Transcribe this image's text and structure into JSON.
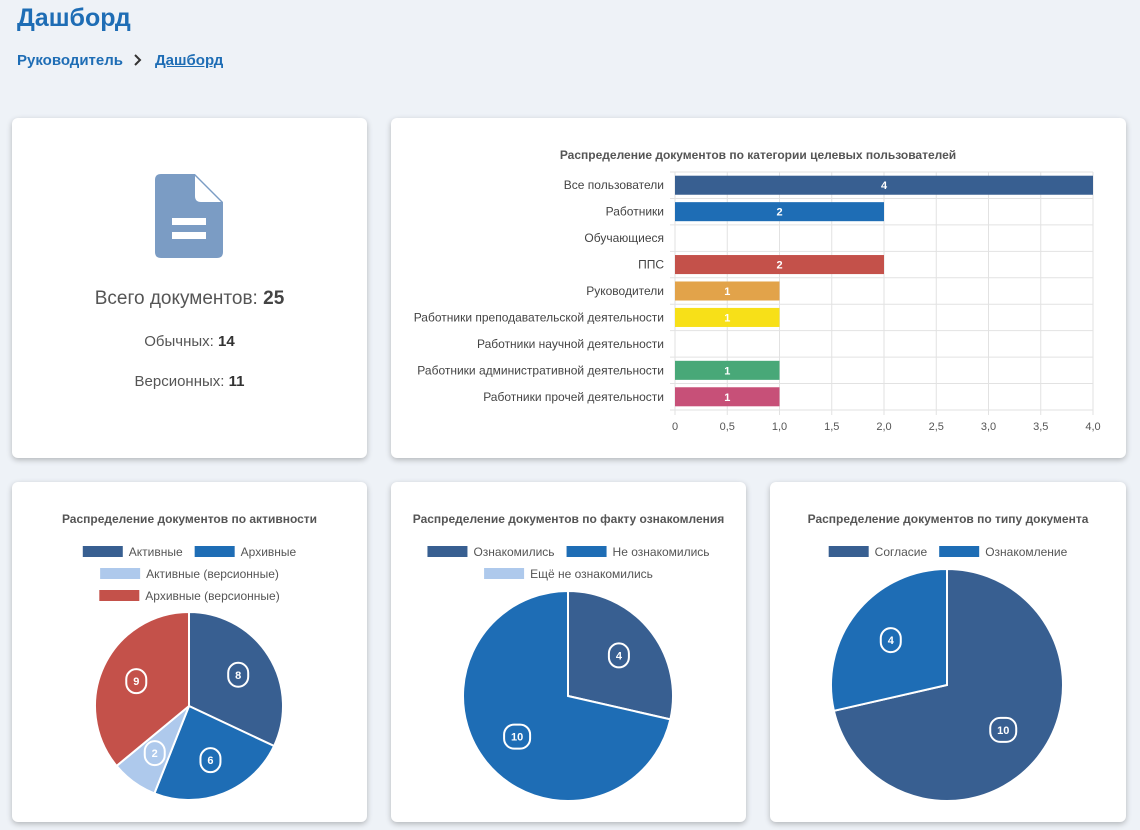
{
  "page": {
    "title": "Дашборд"
  },
  "breadcrumb": {
    "root": "Руководитель",
    "current": "Дашборд"
  },
  "summary": {
    "total_label": "Всего документов:",
    "total_value": "25",
    "regular_label": "Обычных:",
    "regular_value": "14",
    "versioned_label": "Версионных:",
    "versioned_value": "11",
    "icon": "document-icon"
  },
  "chart_data": [
    {
      "type": "bar",
      "orientation": "horizontal",
      "title": "Распределение документов по категории целевых пользователей",
      "categories": [
        "Все пользователи",
        "Работники",
        "Обучающиеся",
        "ППС",
        "Руководители",
        "Работники преподавательской деятельности",
        "Работники научной деятельности",
        "Работники административной деятельности",
        "Работники прочей деятельности"
      ],
      "values": [
        4,
        2,
        0,
        2,
        1,
        1,
        0,
        1,
        1
      ],
      "colors": [
        "#385f91",
        "#1e6db5",
        "#aec9ec",
        "#c4514a",
        "#e2a34a",
        "#f7e018",
        "#8c6ab8",
        "#48a878",
        "#c75078"
      ],
      "xlim": [
        0,
        4
      ],
      "xticks": [
        "0",
        "0,5",
        "1,0",
        "1,5",
        "2,0",
        "2,5",
        "3,0",
        "3,5",
        "4,0"
      ],
      "grid": true
    },
    {
      "type": "pie",
      "title": "Распределение документов по активности",
      "legend": [
        "Активные",
        "Архивные",
        "Активные (версионные)",
        "Архивные (версионные)"
      ],
      "values": [
        8,
        6,
        2,
        9
      ],
      "colors": [
        "#385f91",
        "#1e6db5",
        "#aec9ec",
        "#c4514a"
      ],
      "legend_position": "top"
    },
    {
      "type": "pie",
      "title": "Распределение документов по факту ознакомления",
      "legend": [
        "Ознакомились",
        "Не ознакомились",
        "Ещё не ознакомились"
      ],
      "values": [
        4,
        10,
        0
      ],
      "colors": [
        "#385f91",
        "#1e6db5",
        "#aec9ec"
      ],
      "legend_position": "top"
    },
    {
      "type": "pie",
      "title": "Распределение документов по типу документа",
      "legend": [
        "Согласие",
        "Ознакомление"
      ],
      "values": [
        10,
        4
      ],
      "colors": [
        "#385f91",
        "#1e6db5"
      ],
      "legend_position": "top"
    }
  ]
}
